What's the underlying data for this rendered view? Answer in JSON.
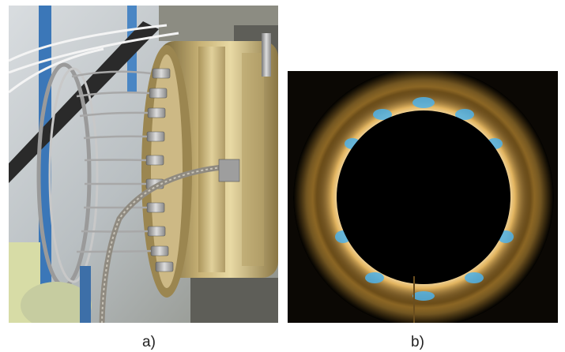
{
  "figure": {
    "panels": [
      {
        "caption": "a)"
      },
      {
        "caption": "b)"
      }
    ]
  }
}
